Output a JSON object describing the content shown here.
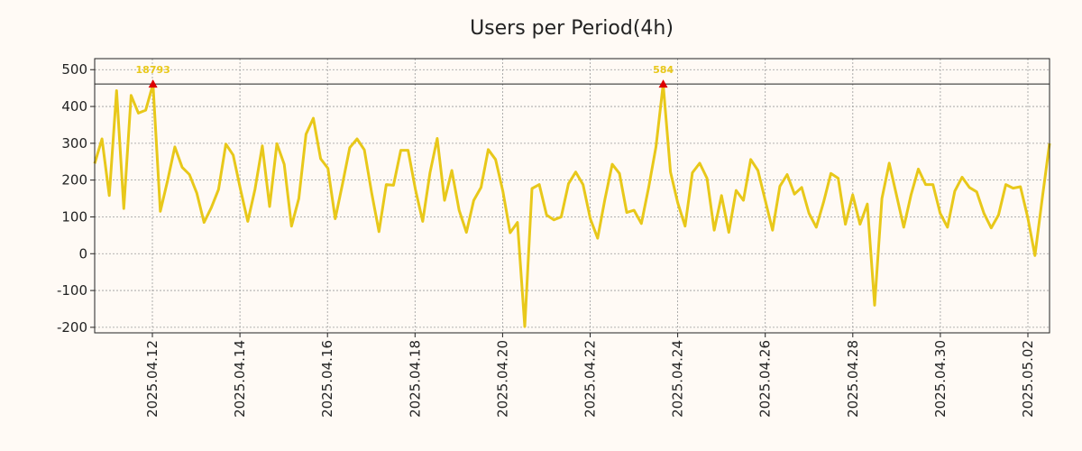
{
  "chart_data": {
    "type": "line",
    "title": "Users per Period(4h)",
    "xlabel": "",
    "ylabel": "",
    "ylim": [
      -215,
      530
    ],
    "y_ticks": [
      500,
      400,
      300,
      200,
      100,
      0,
      -100,
      -200
    ],
    "x_tick_labels": [
      "2025.04.12",
      "2025.04.14",
      "2025.04.16",
      "2025.04.18",
      "2025.04.20",
      "2025.04.22",
      "2025.04.24",
      "2025.04.26",
      "2025.04.28",
      "2025.04.30",
      "2025.05.02"
    ],
    "grid": true,
    "line_color": "#e8c81a",
    "marker_color": "#dd0000",
    "reference_line": 461,
    "series": [
      {
        "values": [
          245,
          312,
          158,
          443,
          123,
          430,
          382,
          390,
          461,
          115,
          198,
          290,
          235,
          215,
          165,
          85,
          125,
          175,
          298,
          268,
          175,
          88,
          175,
          293,
          128,
          299,
          243,
          75,
          150,
          325,
          368,
          258,
          232,
          95,
          190,
          288,
          312,
          282,
          165,
          60,
          188,
          186,
          281,
          281,
          175,
          88,
          220,
          313,
          145,
          226,
          118,
          58,
          145,
          180,
          283,
          256,
          170,
          57,
          85,
          -198,
          177,
          188,
          105,
          92,
          100,
          190,
          222,
          188,
          95,
          42,
          148,
          243,
          218,
          112,
          118,
          82,
          180,
          290,
          461,
          222,
          138,
          75,
          220,
          246,
          205,
          64,
          158,
          58,
          172,
          145,
          256,
          226,
          145,
          64,
          183,
          215,
          162,
          180,
          110,
          72,
          140,
          218,
          205,
          80,
          160,
          80,
          135,
          -140,
          150,
          246,
          160,
          72,
          160,
          230,
          188,
          188,
          110,
          72,
          170,
          208,
          180,
          168,
          110,
          70,
          105,
          188,
          178,
          182,
          100,
          -5,
          150,
          300
        ]
      }
    ],
    "peaks": [
      {
        "index": 8,
        "value": 461,
        "label": "18793"
      },
      {
        "index": 78,
        "value": 461,
        "label": "584"
      }
    ]
  }
}
